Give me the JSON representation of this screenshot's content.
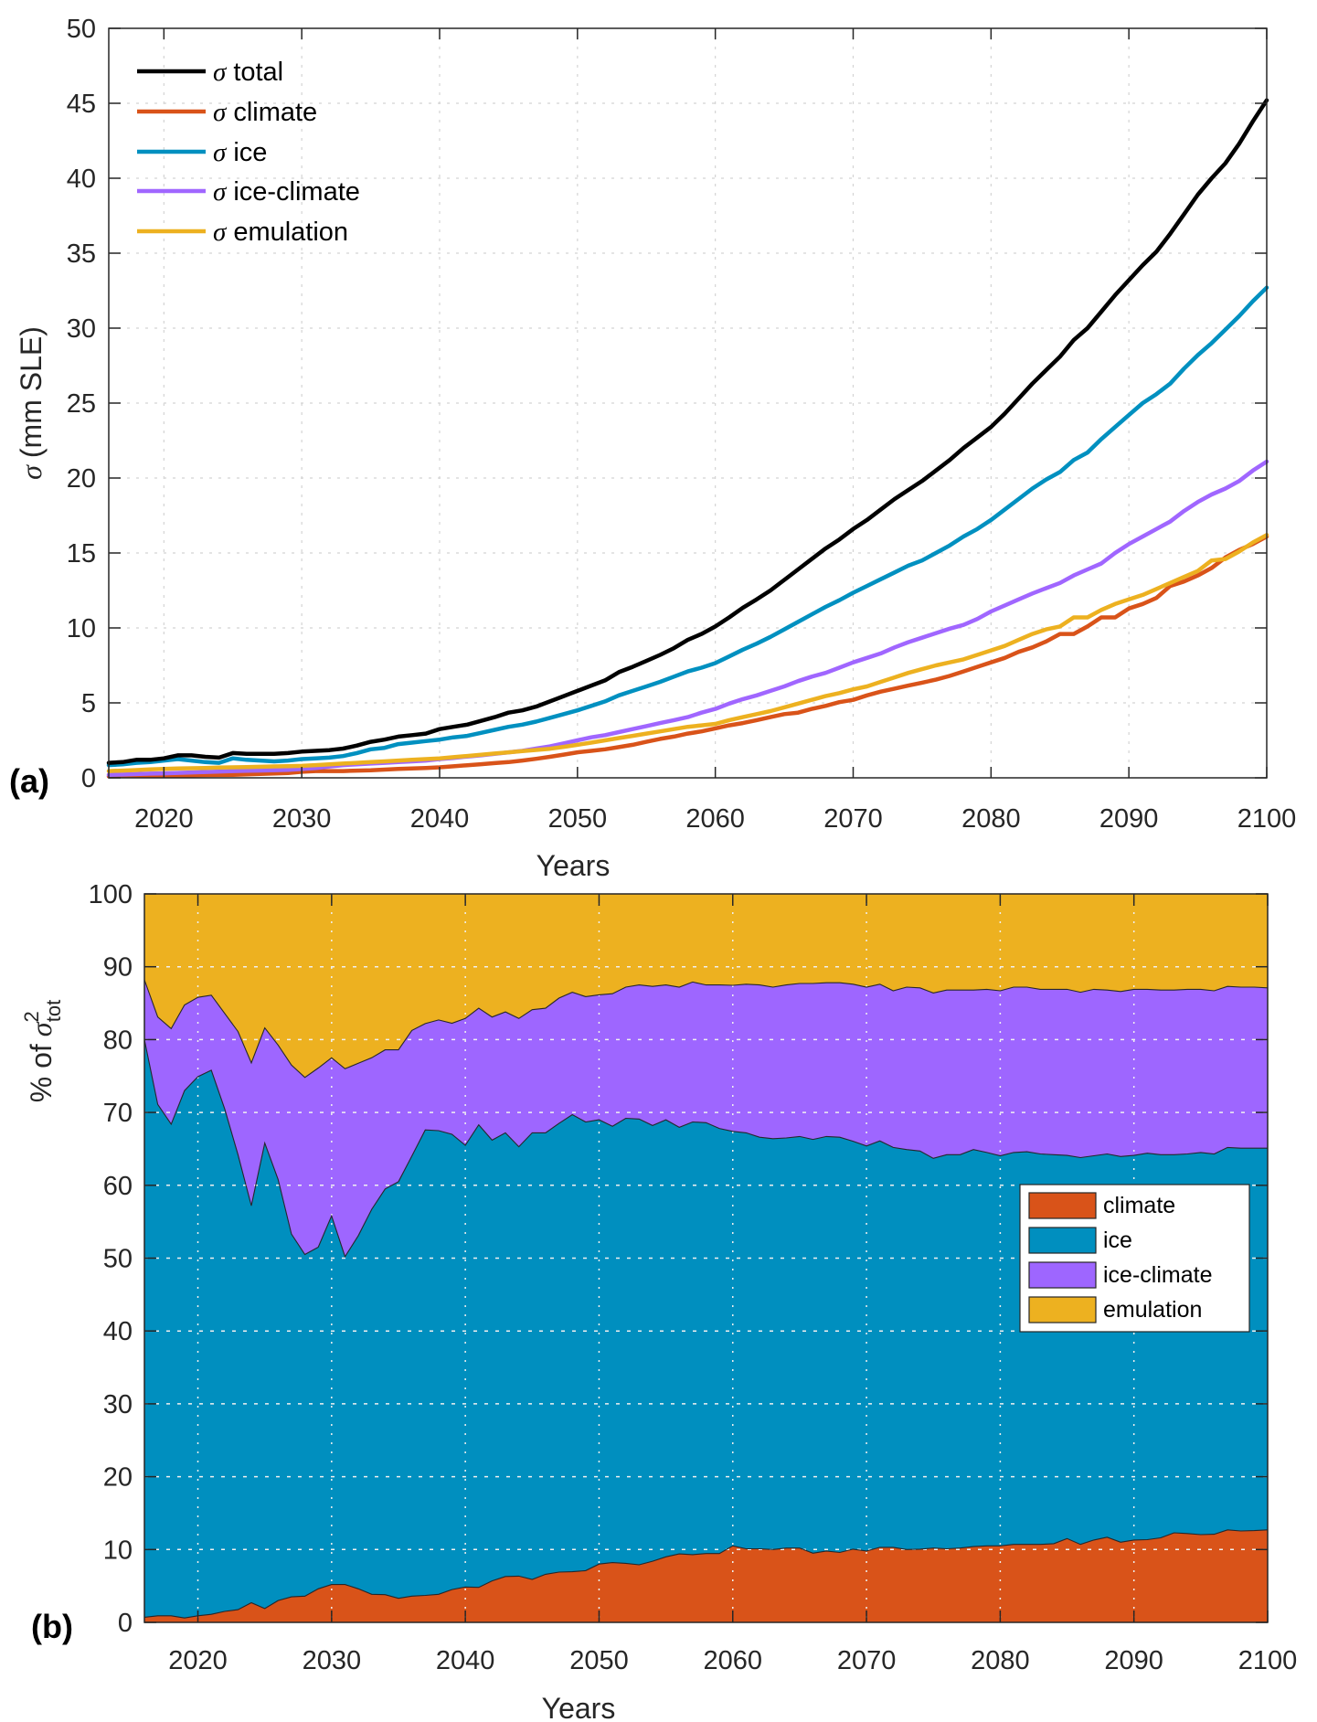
{
  "figure": {
    "panel_a_label": "(a)",
    "panel_b_label": "(b)"
  },
  "chart_data": [
    {
      "type": "line",
      "panel": "(a)",
      "title": "",
      "xlabel": "Years",
      "ylabel_symbol": "σ",
      "ylabel_text": "(mm SLE)",
      "xlim": [
        2016,
        2100
      ],
      "ylim": [
        0,
        50
      ],
      "xticks": [
        2020,
        2030,
        2040,
        2050,
        2060,
        2070,
        2080,
        2090,
        2100
      ],
      "yticks": [
        0,
        5,
        10,
        15,
        20,
        25,
        30,
        35,
        40,
        45,
        50
      ],
      "grid": true,
      "legend_position": "top-left",
      "x": [
        2016,
        2017,
        2018,
        2019,
        2020,
        2021,
        2022,
        2023,
        2024,
        2025,
        2026,
        2027,
        2028,
        2029,
        2030,
        2031,
        2032,
        2033,
        2034,
        2035,
        2036,
        2037,
        2038,
        2039,
        2040,
        2041,
        2042,
        2043,
        2044,
        2045,
        2046,
        2047,
        2048,
        2049,
        2050,
        2051,
        2052,
        2053,
        2054,
        2055,
        2056,
        2057,
        2058,
        2059,
        2060,
        2061,
        2062,
        2063,
        2064,
        2065,
        2066,
        2067,
        2068,
        2069,
        2070,
        2071,
        2072,
        2073,
        2074,
        2075,
        2076,
        2077,
        2078,
        2079,
        2080,
        2081,
        2082,
        2083,
        2084,
        2085,
        2086,
        2087,
        2088,
        2089,
        2090,
        2091,
        2092,
        2093,
        2094,
        2095,
        2096,
        2097,
        2098,
        2099,
        2100
      ],
      "series": [
        {
          "name": "total",
          "legend_symbol": "σ",
          "color": "#000000",
          "values": [
            1.0,
            1.05,
            1.2,
            1.2,
            1.3,
            1.5,
            1.5,
            1.4,
            1.35,
            1.65,
            1.6,
            1.6,
            1.6,
            1.65,
            1.75,
            1.8,
            1.85,
            1.95,
            2.15,
            2.4,
            2.55,
            2.75,
            2.85,
            2.95,
            3.25,
            3.4,
            3.55,
            3.8,
            4.05,
            4.35,
            4.5,
            4.75,
            5.1,
            5.45,
            5.8,
            6.15,
            6.5,
            7.05,
            7.4,
            7.8,
            8.2,
            8.65,
            9.2,
            9.6,
            10.1,
            10.7,
            11.35,
            11.9,
            12.5,
            13.2,
            13.9,
            14.6,
            15.3,
            15.9,
            16.6,
            17.2,
            17.9,
            18.6,
            19.2,
            19.8,
            20.5,
            21.2,
            22.0,
            22.7,
            23.4,
            24.3,
            25.3,
            26.3,
            27.2,
            28.1,
            29.2,
            30.0,
            31.1,
            32.2,
            33.2,
            34.2,
            35.1,
            36.3,
            37.6,
            38.9,
            40.0,
            41.0,
            42.3,
            43.8,
            45.2
          ]
        },
        {
          "name": "climate",
          "legend_symbol": "σ",
          "color": "#D95319",
          "values": [
            0.1,
            0.11,
            0.12,
            0.14,
            0.15,
            0.16,
            0.17,
            0.18,
            0.19,
            0.2,
            0.23,
            0.26,
            0.29,
            0.32,
            0.4,
            0.45,
            0.45,
            0.45,
            0.48,
            0.5,
            0.55,
            0.6,
            0.63,
            0.66,
            0.7,
            0.77,
            0.84,
            0.91,
            0.98,
            1.05,
            1.15,
            1.27,
            1.4,
            1.55,
            1.7,
            1.8,
            1.9,
            2.05,
            2.2,
            2.4,
            2.6,
            2.75,
            2.95,
            3.1,
            3.3,
            3.5,
            3.65,
            3.85,
            4.05,
            4.25,
            4.35,
            4.6,
            4.8,
            5.05,
            5.2,
            5.5,
            5.75,
            5.95,
            6.15,
            6.35,
            6.55,
            6.8,
            7.1,
            7.4,
            7.7,
            8.0,
            8.4,
            8.7,
            9.1,
            9.6,
            9.6,
            10.1,
            10.7,
            10.7,
            11.3,
            11.6,
            12.0,
            12.8,
            13.1,
            13.5,
            14.0,
            14.7,
            15.2,
            15.6,
            16.1
          ]
        },
        {
          "name": "ice",
          "legend_symbol": "σ",
          "color": "#0090C0",
          "values": [
            0.85,
            0.9,
            1.0,
            1.05,
            1.15,
            1.25,
            1.15,
            1.05,
            1.0,
            1.3,
            1.2,
            1.15,
            1.1,
            1.15,
            1.25,
            1.3,
            1.35,
            1.45,
            1.65,
            1.9,
            2.0,
            2.25,
            2.35,
            2.45,
            2.55,
            2.7,
            2.8,
            3.0,
            3.2,
            3.4,
            3.55,
            3.75,
            4.0,
            4.25,
            4.5,
            4.8,
            5.1,
            5.5,
            5.8,
            6.1,
            6.4,
            6.75,
            7.1,
            7.35,
            7.65,
            8.1,
            8.55,
            8.95,
            9.4,
            9.9,
            10.4,
            10.9,
            11.4,
            11.85,
            12.35,
            12.8,
            13.25,
            13.7,
            14.15,
            14.5,
            15.0,
            15.5,
            16.1,
            16.6,
            17.2,
            17.9,
            18.6,
            19.3,
            19.9,
            20.4,
            21.2,
            21.7,
            22.6,
            23.4,
            24.2,
            25.0,
            25.6,
            26.3,
            27.3,
            28.2,
            29.0,
            29.9,
            30.8,
            31.8,
            32.7
          ]
        },
        {
          "name": "ice-climate",
          "legend_symbol": "σ",
          "color": "#A066FF",
          "values": [
            0.2,
            0.22,
            0.25,
            0.28,
            0.3,
            0.33,
            0.36,
            0.39,
            0.42,
            0.45,
            0.47,
            0.49,
            0.51,
            0.53,
            0.6,
            0.65,
            0.75,
            0.85,
            0.9,
            0.95,
            1.0,
            1.05,
            1.1,
            1.15,
            1.25,
            1.33,
            1.42,
            1.5,
            1.6,
            1.7,
            1.8,
            1.95,
            2.1,
            2.3,
            2.5,
            2.7,
            2.85,
            3.05,
            3.25,
            3.45,
            3.65,
            3.85,
            4.05,
            4.35,
            4.6,
            4.95,
            5.25,
            5.5,
            5.8,
            6.1,
            6.45,
            6.75,
            7.0,
            7.35,
            7.7,
            8.0,
            8.3,
            8.7,
            9.05,
            9.35,
            9.65,
            9.95,
            10.2,
            10.6,
            11.1,
            11.5,
            11.9,
            12.3,
            12.65,
            13.0,
            13.5,
            13.9,
            14.3,
            15.0,
            15.6,
            16.1,
            16.6,
            17.1,
            17.8,
            18.4,
            18.9,
            19.3,
            19.8,
            20.5,
            21.1
          ]
        },
        {
          "name": "emulation",
          "legend_symbol": "σ",
          "color": "#EDB120",
          "values": [
            0.45,
            0.48,
            0.52,
            0.56,
            0.6,
            0.62,
            0.64,
            0.66,
            0.68,
            0.7,
            0.72,
            0.74,
            0.76,
            0.78,
            0.8,
            0.85,
            0.9,
            0.95,
            1.0,
            1.05,
            1.1,
            1.15,
            1.2,
            1.25,
            1.3,
            1.38,
            1.46,
            1.54,
            1.62,
            1.7,
            1.78,
            1.86,
            1.94,
            2.07,
            2.2,
            2.35,
            2.5,
            2.65,
            2.8,
            2.95,
            3.1,
            3.25,
            3.4,
            3.5,
            3.6,
            3.85,
            4.05,
            4.25,
            4.45,
            4.7,
            4.95,
            5.2,
            5.45,
            5.65,
            5.9,
            6.1,
            6.4,
            6.7,
            7.0,
            7.25,
            7.5,
            7.7,
            7.9,
            8.2,
            8.5,
            8.8,
            9.2,
            9.6,
            9.9,
            10.1,
            10.7,
            10.7,
            11.2,
            11.6,
            11.9,
            12.2,
            12.6,
            13.0,
            13.4,
            13.8,
            14.5,
            14.6,
            15.1,
            15.7,
            16.2
          ]
        }
      ]
    },
    {
      "type": "area",
      "stacked": true,
      "panel": "(b)",
      "title": "",
      "xlabel": "Years",
      "ylabel_prefix": "% of",
      "ylabel_symbol": "σ",
      "ylabel_superscript": "2",
      "ylabel_subscript": "tot",
      "xlim": [
        2016,
        2100
      ],
      "ylim": [
        0,
        100
      ],
      "xticks": [
        2020,
        2030,
        2040,
        2050,
        2060,
        2070,
        2080,
        2090,
        2100
      ],
      "yticks": [
        0,
        10,
        20,
        30,
        40,
        50,
        60,
        70,
        80,
        90,
        100
      ],
      "grid": true,
      "legend_position": "center-right",
      "x": [
        2016,
        2017,
        2018,
        2019,
        2020,
        2021,
        2022,
        2023,
        2024,
        2025,
        2026,
        2027,
        2028,
        2029,
        2030,
        2031,
        2032,
        2033,
        2034,
        2035,
        2036,
        2037,
        2038,
        2039,
        2040,
        2041,
        2042,
        2043,
        2044,
        2045,
        2046,
        2047,
        2048,
        2049,
        2050,
        2051,
        2052,
        2053,
        2054,
        2055,
        2056,
        2057,
        2058,
        2059,
        2060,
        2061,
        2062,
        2063,
        2064,
        2065,
        2066,
        2067,
        2068,
        2069,
        2070,
        2071,
        2072,
        2073,
        2074,
        2075,
        2076,
        2077,
        2078,
        2079,
        2080,
        2081,
        2082,
        2083,
        2084,
        2085,
        2086,
        2087,
        2088,
        2089,
        2090,
        2091,
        2092,
        2093,
        2094,
        2095,
        2096,
        2097,
        2098,
        2099,
        2100
      ],
      "series": [
        {
          "name": "climate",
          "color": "#D95319",
          "values": [
            0.7,
            0.9,
            0.9,
            0.6,
            0.9,
            1.1,
            1.5,
            1.75,
            2.7,
            1.9,
            3.0,
            3.5,
            3.6,
            4.6,
            5.2,
            5.2,
            4.6,
            3.85,
            3.8,
            3.3,
            3.6,
            3.7,
            3.85,
            4.5,
            4.85,
            4.8,
            5.7,
            6.3,
            6.35,
            5.9,
            6.6,
            6.9,
            6.95,
            7.1,
            8.0,
            8.2,
            8.1,
            7.9,
            8.4,
            9.0,
            9.4,
            9.3,
            9.45,
            9.45,
            10.5,
            10.1,
            10.1,
            10.0,
            10.2,
            10.2,
            9.5,
            9.8,
            9.6,
            10.05,
            9.8,
            10.3,
            10.3,
            10.0,
            10.05,
            10.2,
            10.1,
            10.2,
            10.4,
            10.5,
            10.5,
            10.7,
            10.7,
            10.7,
            10.8,
            11.5,
            10.7,
            11.3,
            11.7,
            11.0,
            11.3,
            11.35,
            11.6,
            12.3,
            12.2,
            12.05,
            12.1,
            12.7,
            12.55,
            12.6,
            12.7
          ]
        },
        {
          "name": "ice",
          "color": "#008FBF",
          "values": [
            79.3,
            70.2,
            67.5,
            72.4,
            74.0,
            74.7,
            69.0,
            62.45,
            54.5,
            63.9,
            57.8,
            49.8,
            46.9,
            46.9,
            50.6,
            45.0,
            48.5,
            52.85,
            55.7,
            57.2,
            60.4,
            63.9,
            63.65,
            62.5,
            60.65,
            63.5,
            60.5,
            60.9,
            58.95,
            61.3,
            60.6,
            61.6,
            62.75,
            61.6,
            61.0,
            59.9,
            61.1,
            61.2,
            59.8,
            60.0,
            58.55,
            59.4,
            59.15,
            58.35,
            56.9,
            57.1,
            56.5,
            56.4,
            56.3,
            56.5,
            56.8,
            56.9,
            57.0,
            56.0,
            55.6,
            55.8,
            54.9,
            54.9,
            54.65,
            53.5,
            54.1,
            54.0,
            54.5,
            54.0,
            53.55,
            53.8,
            53.9,
            53.6,
            53.4,
            52.6,
            53.1,
            52.75,
            52.6,
            52.95,
            52.8,
            53.05,
            52.6,
            51.9,
            52.1,
            52.45,
            52.2,
            52.5,
            52.55,
            52.5,
            52.4
          ]
        },
        {
          "name": "ice-climate",
          "color": "#9E66FF",
          "values": [
            8.2,
            12.0,
            13.1,
            11.75,
            10.9,
            10.3,
            13.1,
            16.9,
            19.6,
            15.8,
            18.45,
            23.2,
            24.3,
            24.6,
            21.7,
            25.8,
            23.65,
            20.8,
            19.1,
            18.1,
            17.25,
            14.6,
            15.2,
            15.25,
            17.4,
            16.0,
            16.9,
            16.6,
            17.6,
            16.9,
            17.1,
            17.2,
            16.8,
            17.2,
            17.15,
            18.2,
            18.0,
            18.4,
            19.1,
            18.5,
            19.25,
            19.2,
            18.9,
            19.7,
            20.05,
            20.4,
            20.9,
            20.8,
            21.0,
            21.0,
            21.4,
            21.1,
            21.2,
            21.55,
            21.8,
            21.5,
            21.5,
            22.3,
            22.4,
            22.7,
            22.6,
            22.6,
            21.9,
            22.4,
            22.65,
            22.7,
            22.6,
            22.6,
            22.7,
            22.8,
            22.7,
            22.85,
            22.5,
            22.65,
            22.8,
            22.5,
            22.6,
            22.6,
            22.6,
            22.4,
            22.4,
            22.1,
            22.1,
            22.1,
            22.0
          ]
        },
        {
          "name": "emulation",
          "color": "#EDB120",
          "values": [
            11.8,
            16.9,
            18.5,
            15.25,
            14.2,
            13.9,
            16.4,
            18.9,
            23.2,
            18.4,
            20.75,
            23.5,
            25.2,
            23.9,
            22.5,
            24.0,
            23.25,
            22.5,
            21.4,
            21.4,
            18.75,
            17.8,
            17.3,
            17.75,
            17.1,
            15.7,
            16.9,
            16.2,
            17.1,
            15.9,
            15.7,
            14.3,
            13.5,
            14.1,
            13.85,
            13.7,
            12.8,
            12.5,
            12.7,
            12.5,
            12.8,
            12.1,
            12.5,
            12.5,
            12.55,
            12.4,
            12.5,
            12.8,
            12.5,
            12.3,
            12.3,
            12.2,
            12.2,
            12.4,
            12.8,
            12.4,
            13.3,
            12.8,
            12.9,
            13.6,
            13.2,
            13.2,
            13.2,
            13.1,
            13.3,
            12.8,
            12.8,
            13.1,
            13.1,
            13.1,
            13.5,
            13.1,
            13.2,
            13.4,
            13.1,
            13.1,
            13.2,
            13.2,
            13.1,
            13.1,
            13.3,
            12.7,
            12.8,
            12.8,
            12.9
          ]
        }
      ]
    }
  ]
}
